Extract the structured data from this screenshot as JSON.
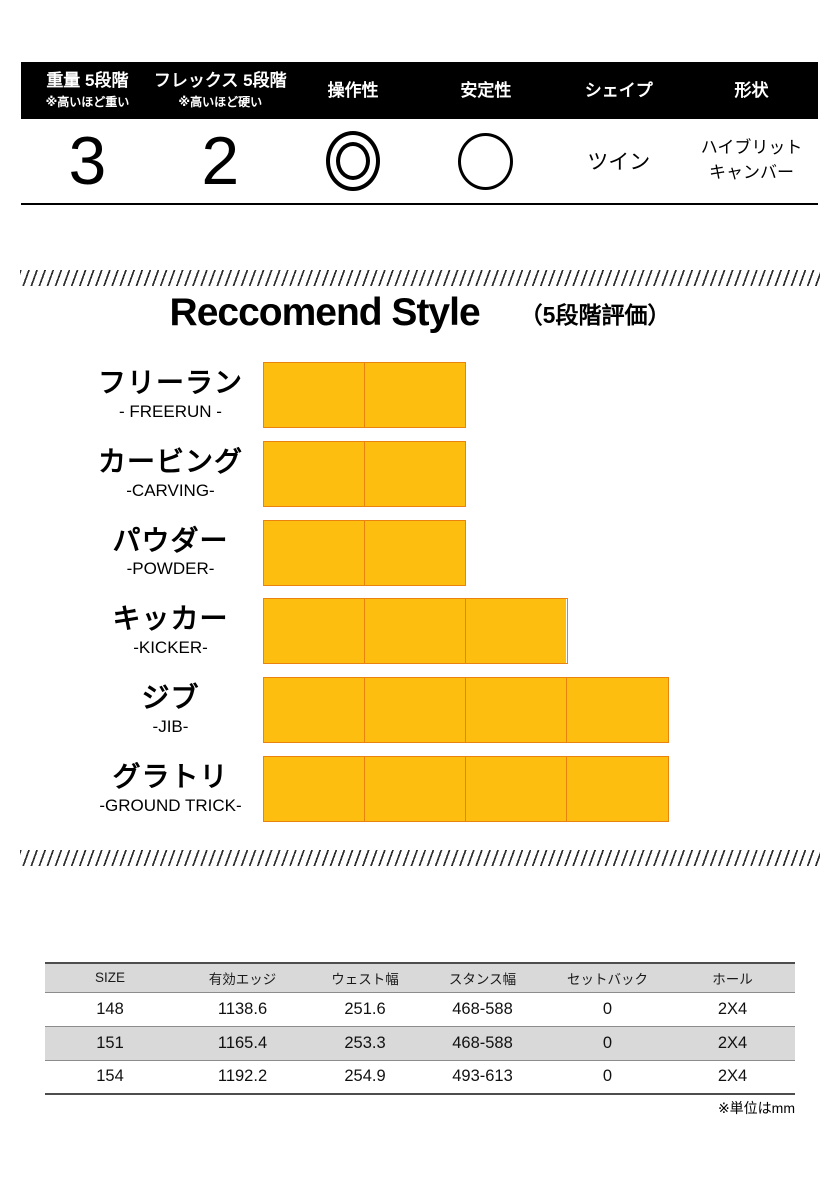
{
  "spec_bar": {
    "columns": [
      {
        "label": "重量 5段階",
        "sublabel": "※高いほど重い",
        "value": "3"
      },
      {
        "label": "フレックス 5段階",
        "sublabel": "※高いほど硬い",
        "value": "2"
      },
      {
        "label": "操作性",
        "symbol": "◎",
        "icon": "double-circle"
      },
      {
        "label": "安定性",
        "symbol": "○",
        "icon": "circle"
      },
      {
        "label": "シェイプ",
        "value": "ツイン"
      },
      {
        "label": "形状",
        "value_lines": [
          "ハイブリット",
          "キャンバー"
        ]
      }
    ]
  },
  "recommend": {
    "title": "Reccomend Style",
    "subtitle": "（5段階評価）",
    "scale_max": 5,
    "items": [
      {
        "ja": "フリーラン",
        "en": "- FREERUN -",
        "value": 2
      },
      {
        "ja": "カービング",
        "en": "-CARVING-",
        "value": 2
      },
      {
        "ja": "パウダー",
        "en": "-POWDER-",
        "value": 2
      },
      {
        "ja": "キッカー",
        "en": "-KICKER-",
        "value": 3
      },
      {
        "ja": "ジブ",
        "en": "-JIB-",
        "value": 4
      },
      {
        "ja": "グラトリ",
        "en": "-GROUND TRICK-",
        "value": 4
      }
    ]
  },
  "chart_data": {
    "type": "bar",
    "orientation": "horizontal",
    "title": "Reccomend Style（5段階評価）",
    "categories": [
      "フリーラン - FREERUN -",
      "カービング -CARVING-",
      "パウダー -POWDER-",
      "キッカー -KICKER-",
      "ジブ -JIB-",
      "グラトリ -GROUND TRICK-"
    ],
    "values": [
      2,
      2,
      2,
      3,
      4,
      4
    ],
    "xlim": [
      0,
      5
    ],
    "grid": false,
    "legend": false,
    "bar_color": "#FEBE10"
  },
  "size_table": {
    "headers": [
      "SIZE",
      "有効エッジ",
      "ウェスト幅",
      "スタンス幅",
      "セットバック",
      "ホール"
    ],
    "rows": [
      [
        "148",
        "1138.6",
        "251.6",
        "468-588",
        "0",
        "2X4"
      ],
      [
        "151",
        "1165.4",
        "253.3",
        "468-588",
        "0",
        "2X4"
      ],
      [
        "154",
        "1192.2",
        "254.9",
        "493-613",
        "0",
        "2X4"
      ]
    ],
    "note": "※単位はmm"
  },
  "colors": {
    "bar_fill": "#FEBE10",
    "bar_line": "#E9830E",
    "table_stripe": "#D9D9D9",
    "header_bg": "#000000"
  }
}
